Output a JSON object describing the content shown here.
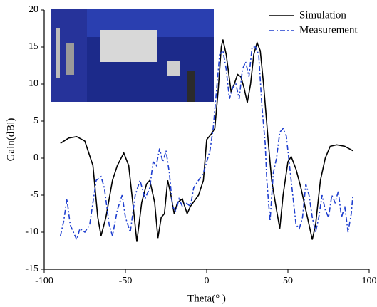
{
  "chart_data": {
    "type": "line",
    "x_label": "Theta(° )",
    "y_label": "Gain(dBi)",
    "xlim": [
      -100,
      100
    ],
    "xticks": [
      -100,
      -50,
      0,
      50,
      100
    ],
    "ylim": [
      -15,
      20
    ],
    "yticks": [
      -15,
      -10,
      -5,
      0,
      5,
      10,
      15,
      20
    ],
    "legend": "upper right",
    "series": [
      {
        "name": "Simulation",
        "color": "#000000",
        "dash": "solid",
        "x": [
          -90,
          -85,
          -80,
          -75,
          -70,
          -67,
          -65,
          -62,
          -58,
          -55,
          -51,
          -48,
          -45,
          -43,
          -40,
          -37,
          -35,
          -32,
          -30,
          -28,
          -26,
          -24,
          -22,
          -20,
          -18,
          -15,
          -12,
          -10,
          -5,
          -2,
          0,
          3,
          5,
          7,
          9,
          10,
          12,
          15,
          17,
          19,
          21,
          23,
          25,
          27,
          29,
          31,
          33,
          35,
          38,
          40,
          43,
          45,
          47,
          50,
          52,
          55,
          58,
          62,
          65,
          67,
          70,
          73,
          76,
          80,
          85,
          90
        ],
        "values": [
          2,
          2.7,
          2.9,
          2.3,
          -1,
          -8,
          -10.5,
          -8,
          -3,
          -1,
          0.7,
          -1,
          -7,
          -11.3,
          -6,
          -3.5,
          -3,
          -6,
          -10.8,
          -8,
          -7.5,
          -3,
          -5,
          -7.5,
          -6,
          -5.5,
          -7.5,
          -6.5,
          -5,
          -3,
          2.5,
          3.3,
          4,
          9,
          15,
          16,
          14,
          9,
          10,
          11.3,
          11,
          9.5,
          7.5,
          10,
          14,
          15.6,
          14.5,
          10,
          2,
          -3,
          -7,
          -9.5,
          -5,
          -0.5,
          0.2,
          -1.5,
          -4,
          -8,
          -11,
          -9,
          -3,
          0,
          1.6,
          1.8,
          1.6,
          1
        ]
      },
      {
        "name": "Measurement",
        "color": "#1f3fcf",
        "dash": "dashdot",
        "x": [
          -90,
          -88,
          -86,
          -84,
          -82,
          -80,
          -78,
          -75,
          -72,
          -70,
          -68,
          -65,
          -63,
          -60,
          -58,
          -55,
          -52,
          -50,
          -47,
          -44,
          -41,
          -38,
          -35,
          -33,
          -31,
          -29,
          -27,
          -25,
          -23,
          -21,
          -19,
          -17,
          -15,
          -13,
          -10,
          -8,
          -5,
          -2,
          0,
          2,
          4,
          6,
          8,
          10,
          12,
          14,
          16,
          18,
          20,
          22,
          24,
          26,
          28,
          30,
          32,
          34,
          36,
          37,
          39,
          41,
          43,
          45,
          47,
          49,
          51,
          53,
          55,
          57,
          59,
          61,
          63,
          65,
          67,
          69,
          71,
          73,
          75,
          77,
          79,
          81,
          83,
          85,
          87,
          89,
          90
        ],
        "values": [
          -10.5,
          -8.5,
          -5.5,
          -9,
          -10,
          -11,
          -9.5,
          -10,
          -9,
          -6,
          -3,
          -2.5,
          -4,
          -9,
          -10.5,
          -7,
          -5,
          -8,
          -10,
          -5,
          -3,
          -5.5,
          -4,
          -0.5,
          -1,
          1.3,
          -0.5,
          1,
          -2,
          -6.5,
          -7.2,
          -5.5,
          -6.5,
          -6,
          -6.5,
          -4,
          -3,
          -2,
          -0.5,
          1,
          4,
          9,
          14,
          14.5,
          12,
          8,
          9.5,
          10,
          8,
          12,
          13,
          11,
          15,
          15,
          14,
          7,
          2,
          -3,
          -8.5,
          -2,
          0,
          3.5,
          4,
          3,
          -1,
          -5,
          -9,
          -9.5,
          -8,
          -3.5,
          -5,
          -8,
          -10,
          -8,
          -5,
          -7,
          -8,
          -5,
          -6,
          -4.5,
          -8,
          -6.5,
          -10,
          -7.5,
          -5
        ]
      }
    ]
  }
}
